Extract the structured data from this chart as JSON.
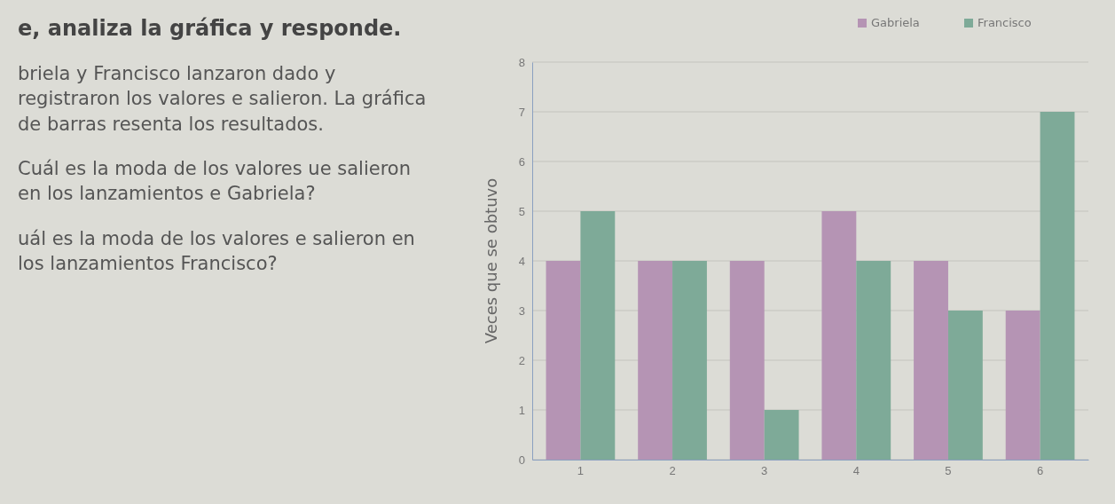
{
  "chart_data": {
    "type": "bar",
    "title": "e, analiza la gráfica y responde.",
    "annotations": [
      "briela y Francisco lanzaron dado y registraron los valores e salieron. La gráfica de barras resenta los resultados.",
      "Cuál es la moda de los valores ue salieron en los lanzamientos e Gabriela?",
      "uál es la moda de los valores e salieron en los lanzamientos Francisco?"
    ],
    "ylabel": "Veces que se obtuvo",
    "categories": [
      "1",
      "2",
      "3",
      "4",
      "5",
      "6"
    ],
    "series": [
      {
        "name": "Gabriela",
        "color": "#b594b4",
        "values": [
          4,
          4,
          4,
          5,
          4,
          3
        ]
      },
      {
        "name": "Francisco",
        "color": "#7eaa98",
        "values": [
          5,
          4,
          1,
          4,
          3,
          7
        ]
      }
    ],
    "ylim": [
      0,
      8
    ],
    "yticks": [
      0,
      1,
      2,
      3,
      4,
      5,
      6,
      7,
      8
    ],
    "grid": "y",
    "legend": "top right"
  }
}
